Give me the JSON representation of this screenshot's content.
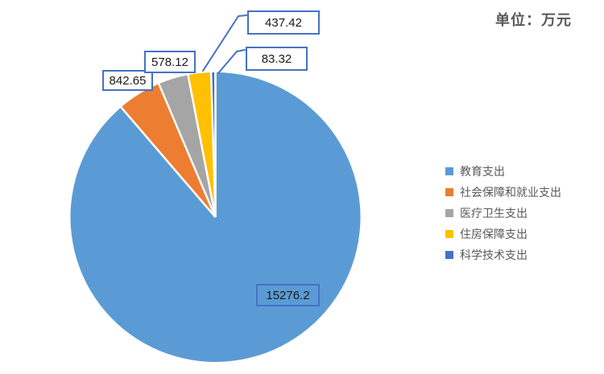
{
  "header": {
    "unit_label": "单位：万元"
  },
  "chart_data": {
    "type": "pie",
    "categories": [
      "教育支出",
      "社会保障和就业支出",
      "医疗卫生支出",
      "住房保障支出",
      "科学技术支出"
    ],
    "values": [
      15276.2,
      842.65,
      578.12,
      437.42,
      83.32
    ],
    "data_labels": [
      "15276.2",
      "842.65",
      "578.12",
      "437.42",
      "83.32"
    ],
    "colors": [
      "#5B9BD5",
      "#ED7D31",
      "#A5A5A5",
      "#FFC000",
      "#4472C4"
    ],
    "unit_label": "单位：万元",
    "legend_position": "right",
    "start_angle_deg": 0,
    "direction": "clockwise",
    "label_box_border_color": "#4472C4",
    "leader_line_color": "#4472C4",
    "slice_gap_color": "#FFFFFF"
  }
}
